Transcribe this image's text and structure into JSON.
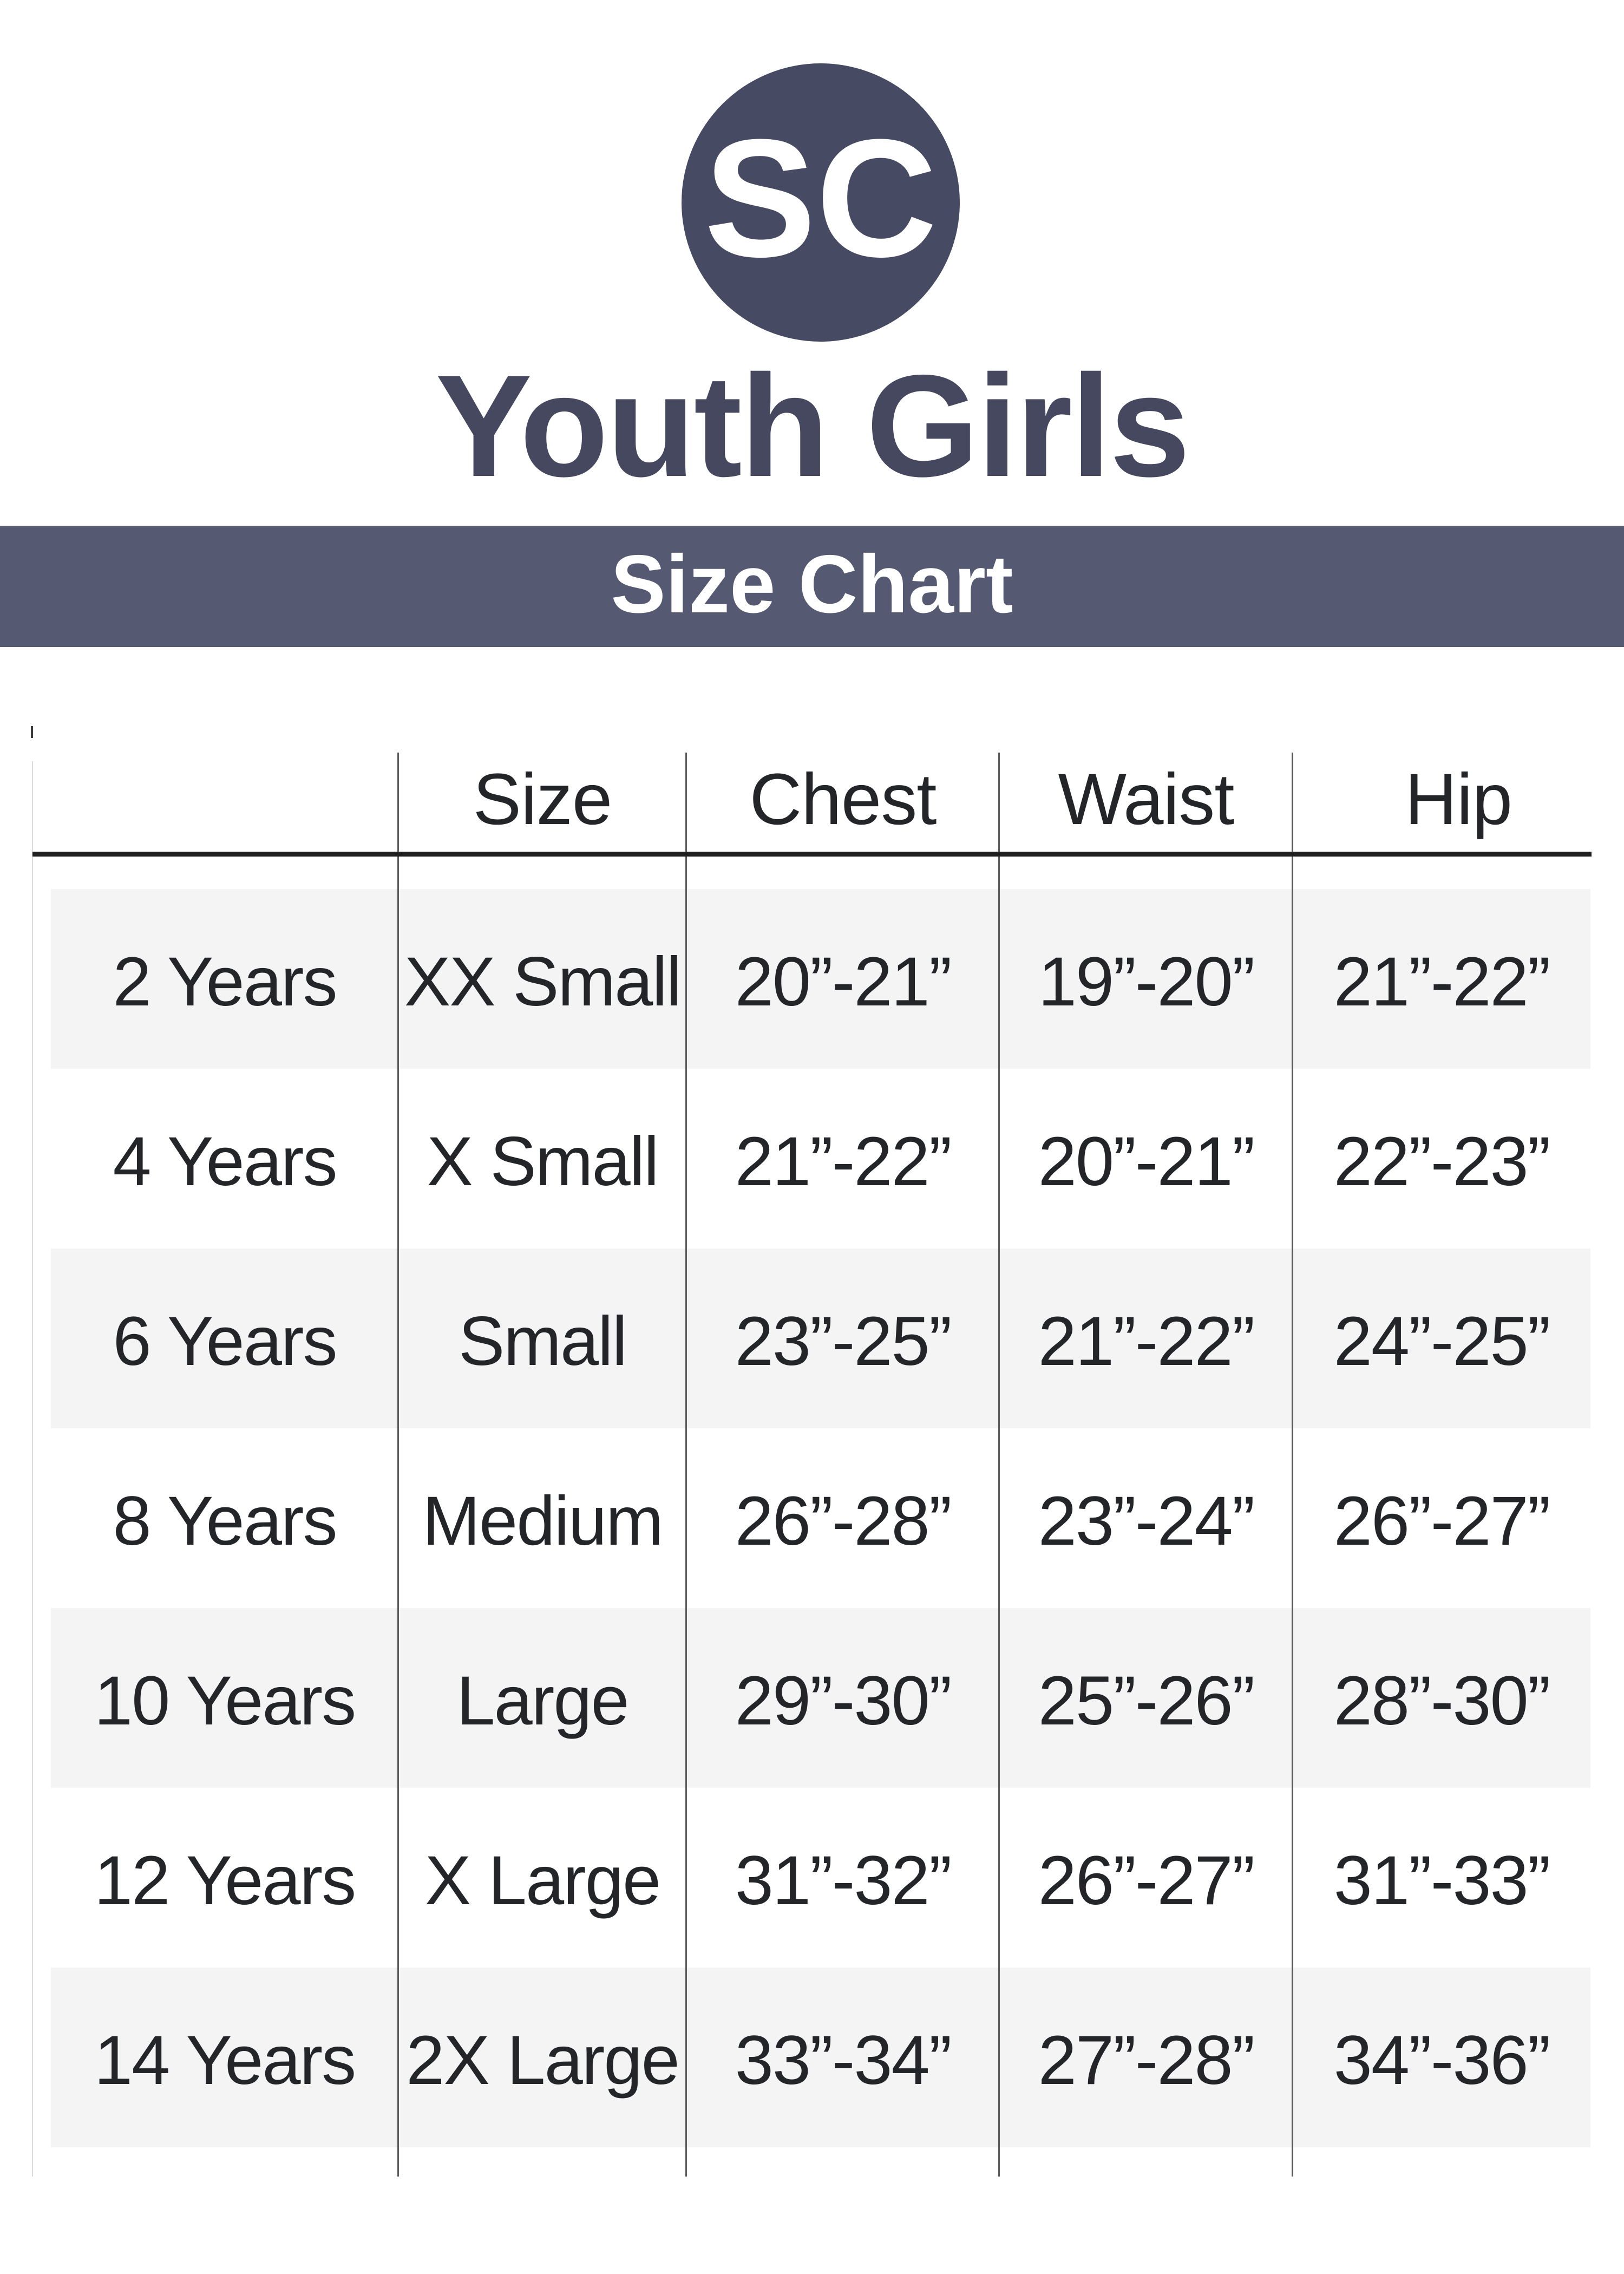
{
  "logo": {
    "text": "SC"
  },
  "title": "Youth Girls",
  "banner": {
    "label": "Size Chart"
  },
  "colors": {
    "brand": "#474a63",
    "title": "#45485f",
    "banner_bg": "#555a72",
    "stripe": "#f4f4f5",
    "rule": "#1f1f1f",
    "grid_line": "#5c5c5c",
    "text": "#242528"
  },
  "chart_data": {
    "type": "table",
    "title": "Youth Girls Size Chart",
    "columns": [
      "",
      "Size",
      "Chest",
      "Waist",
      "Hip"
    ],
    "rows": [
      [
        "2 Years",
        "XX Small",
        "20”-21”",
        "19”-20”",
        "21”-22”"
      ],
      [
        "4 Years",
        "X Small",
        "21”-22”",
        "20”-21”",
        "22”-23”"
      ],
      [
        "6 Years",
        "Small",
        "23”-25”",
        "21”-22”",
        "24”-25”"
      ],
      [
        "8 Years",
        "Medium",
        "26”-28”",
        "23”-24”",
        "26”-27”"
      ],
      [
        "10 Years",
        "Large",
        "29”-30”",
        "25”-26”",
        "28”-30”"
      ],
      [
        "12 Years",
        "X Large",
        "31”-32”",
        "26”-27”",
        "31”-33”"
      ],
      [
        "14 Years",
        "2X Large",
        "33”-34”",
        "27”-28”",
        "34”-36”"
      ]
    ],
    "layout": {
      "striped_rows": [
        0,
        2,
        4,
        6
      ],
      "grid": "vertical-dividers-only"
    }
  }
}
